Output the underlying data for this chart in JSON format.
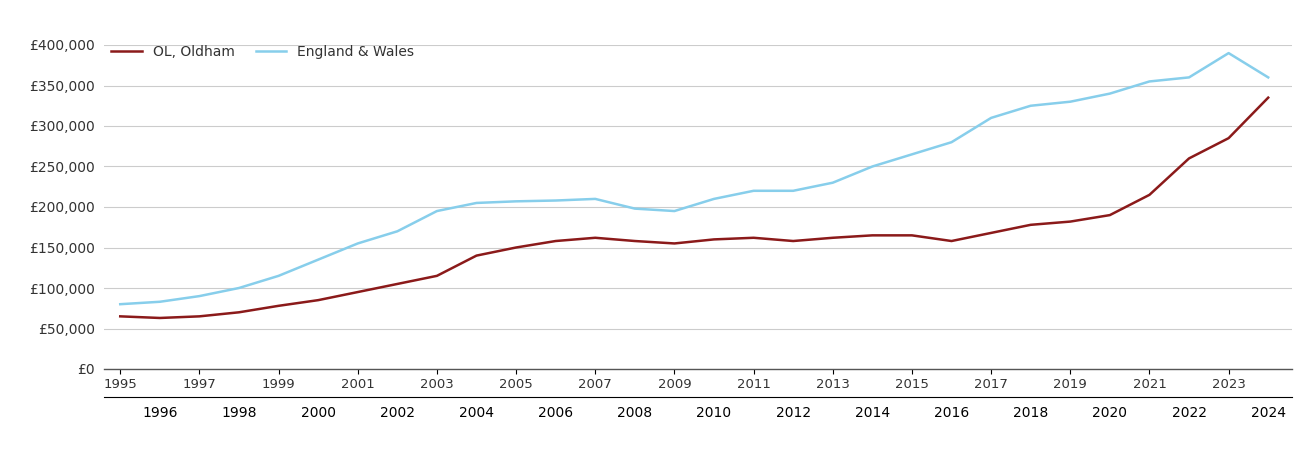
{
  "years": [
    1995,
    1996,
    1997,
    1998,
    1999,
    2000,
    2001,
    2002,
    2003,
    2004,
    2005,
    2006,
    2007,
    2008,
    2009,
    2010,
    2011,
    2012,
    2013,
    2014,
    2015,
    2016,
    2017,
    2018,
    2019,
    2020,
    2021,
    2022,
    2023,
    2024
  ],
  "oldham": [
    65000,
    63000,
    65000,
    70000,
    78000,
    85000,
    95000,
    105000,
    115000,
    140000,
    150000,
    158000,
    162000,
    158000,
    155000,
    160000,
    162000,
    158000,
    162000,
    165000,
    165000,
    158000,
    168000,
    178000,
    182000,
    190000,
    215000,
    260000,
    285000,
    335000
  ],
  "england_wales": [
    80000,
    83000,
    90000,
    100000,
    115000,
    135000,
    155000,
    170000,
    195000,
    205000,
    207000,
    208000,
    210000,
    198000,
    195000,
    210000,
    220000,
    220000,
    230000,
    250000,
    265000,
    280000,
    310000,
    325000,
    330000,
    340000,
    355000,
    360000,
    390000,
    360000
  ],
  "oldham_color": "#8B1A1A",
  "england_wales_color": "#87CEEB",
  "oldham_label": "OL, Oldham",
  "england_wales_label": "England & Wales",
  "ylim": [
    0,
    400000
  ],
  "yticks": [
    0,
    50000,
    100000,
    150000,
    200000,
    250000,
    300000,
    350000,
    400000
  ],
  "ytick_labels": [
    "£0",
    "£50,000",
    "£100,000",
    "£150,000",
    "£200,000",
    "£250,000",
    "£300,000",
    "£350,000",
    "£400,000"
  ],
  "grid_color": "#cccccc",
  "background_color": "#ffffff",
  "line_width": 1.8,
  "xlim": [
    1994.6,
    2024.6
  ],
  "odd_years": [
    1995,
    1997,
    1999,
    2001,
    2003,
    2005,
    2007,
    2009,
    2011,
    2013,
    2015,
    2017,
    2019,
    2021,
    2023
  ],
  "even_years": [
    1996,
    1998,
    2000,
    2002,
    2004,
    2006,
    2008,
    2010,
    2012,
    2014,
    2016,
    2018,
    2020,
    2022,
    2024
  ]
}
